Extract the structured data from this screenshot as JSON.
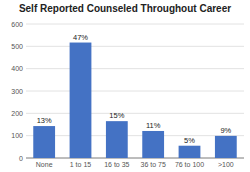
{
  "chart_data": {
    "type": "bar",
    "title": "Self Reported Counseled Throughout Career",
    "categories": [
      "None",
      "1 to 15",
      "16 to 35",
      "36 to 75",
      "76 to 100",
      ">100"
    ],
    "values": [
      143,
      517,
      165,
      121,
      55,
      99
    ],
    "value_labels": [
      "13%",
      "47%",
      "15%",
      "11%",
      "5%",
      "9%"
    ],
    "data_labels": true,
    "color": "#4472C4",
    "ylim": [
      0,
      600
    ],
    "yticks": [
      0,
      100,
      200,
      300,
      400,
      500,
      600
    ],
    "grid": true
  }
}
